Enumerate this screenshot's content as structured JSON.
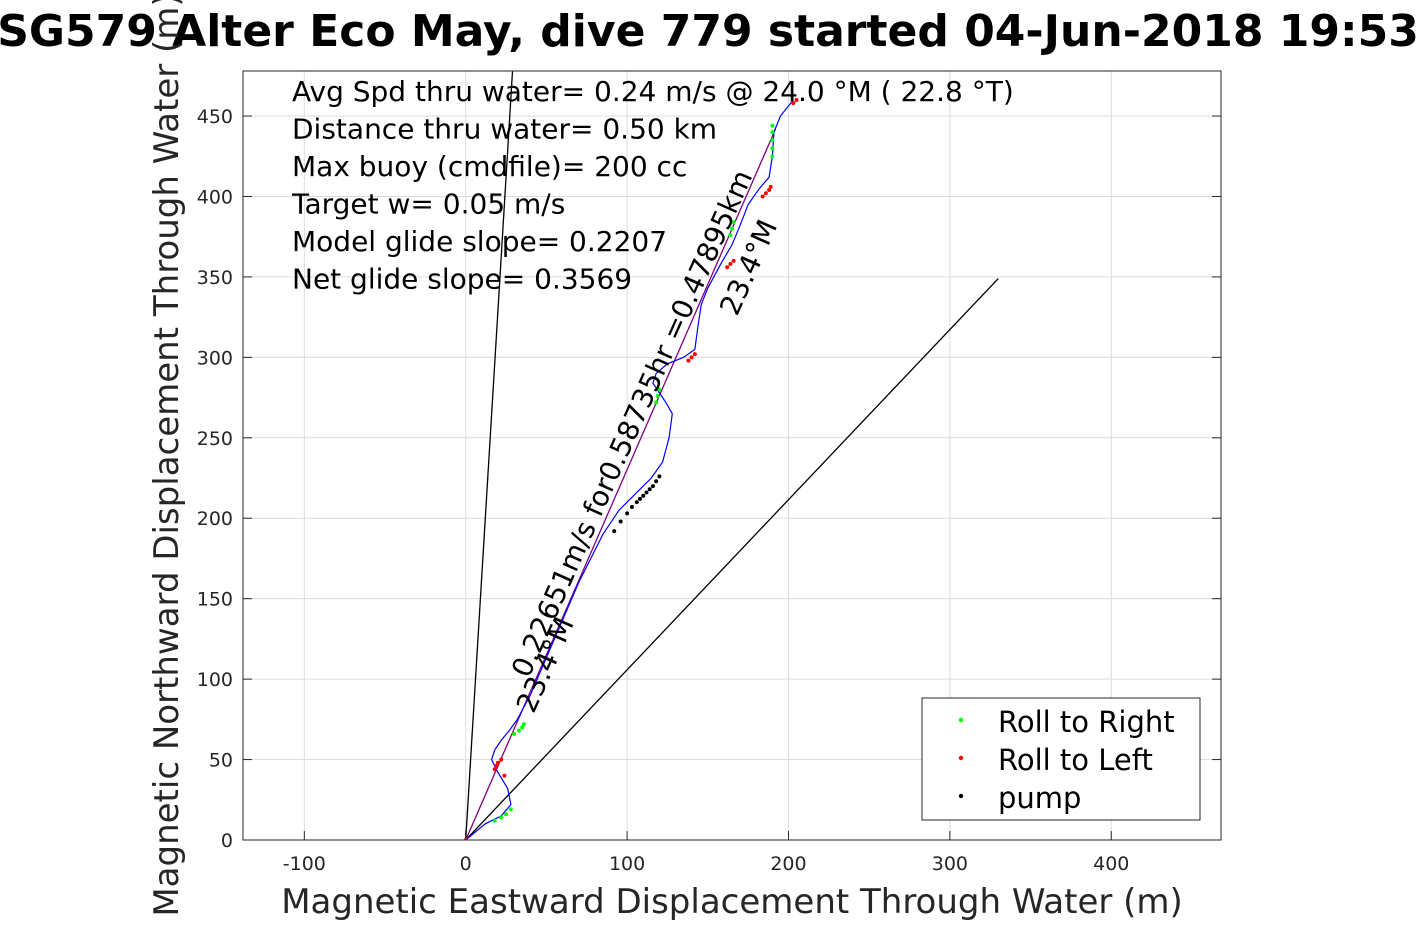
{
  "chart_data": {
    "type": "line",
    "title": "SG579 Alter Eco May, dive 779 started 04-Jun-2018 19:53",
    "xlabel": "Magnetic Eastward Displacement Through Water (m)",
    "ylabel": "Magnetic Northward Displacement Through Water (m)",
    "xlim": [
      -138,
      468
    ],
    "ylim": [
      0,
      478
    ],
    "xticks": [
      -100,
      0,
      100,
      200,
      300,
      400
    ],
    "yticks": [
      0,
      50,
      100,
      150,
      200,
      250,
      300,
      350,
      400,
      450
    ],
    "grid": true,
    "info_lines": [
      "Avg Spd thru water=  0.24 m/s @  24.0 °M ( 22.8 °T)",
      "Distance thru water=  0.50 km",
      "Max buoy (cmdfile)= 200 cc",
      "Target w= 0.05 m/s",
      "Model glide slope= 0.2207",
      "Net glide slope= 0.3569"
    ],
    "annotations": [
      {
        "text": "0.22651m/s for0.58735hr =0.47895km",
        "at": [
          39,
          100
        ],
        "angle_deg": -66
      },
      {
        "text": "23.4°M",
        "at": [
          42,
          78
        ],
        "angle_deg": -66
      },
      {
        "text": "23.4°M",
        "at": [
          168,
          325
        ],
        "angle_deg": -66
      }
    ],
    "reference_lines": [
      {
        "name": "left-bound",
        "x": [
          0,
          29
        ],
        "y": [
          0,
          478
        ]
      },
      {
        "name": "right-bound",
        "x": [
          0,
          330
        ],
        "y": [
          0,
          349
        ]
      },
      {
        "name": "heading-line",
        "x": [
          0,
          192
        ],
        "y": [
          0,
          442
        ]
      }
    ],
    "series": [
      {
        "name": "track",
        "color": "#0000ff",
        "x": [
          0,
          12,
          22,
          28,
          26,
          20,
          16,
          18,
          22,
          27,
          32,
          40,
          55,
          70,
          85,
          95,
          105,
          115,
          122,
          126,
          128,
          124,
          120,
          116,
          118,
          125,
          135,
          142,
          144,
          146,
          150,
          158,
          165,
          170,
          175,
          182,
          188,
          190,
          191,
          195,
          203
        ],
        "y": [
          0,
          10,
          15,
          22,
          32,
          42,
          50,
          56,
          62,
          68,
          75,
          90,
          125,
          160,
          190,
          205,
          215,
          225,
          235,
          250,
          265,
          272,
          278,
          284,
          290,
          296,
          300,
          305,
          320,
          333,
          343,
          358,
          370,
          382,
          395,
          405,
          412,
          425,
          440,
          450,
          460
        ]
      },
      {
        "name": "Roll to Right",
        "color": "#00ff00",
        "x": [
          18,
          22,
          25,
          28,
          30,
          33,
          35,
          36,
          118,
          119,
          120,
          164,
          165,
          166,
          190,
          190,
          190,
          190,
          190
        ],
        "y": [
          12,
          14,
          16,
          19,
          66,
          68,
          70,
          72,
          272,
          276,
          280,
          376,
          380,
          384,
          425,
          430,
          435,
          440,
          444
        ]
      },
      {
        "name": "Roll to Left",
        "color": "#ff0000",
        "x": [
          0,
          18,
          19,
          20,
          22,
          24,
          138,
          140,
          142,
          162,
          164,
          166,
          184,
          186,
          188,
          189,
          203,
          205
        ],
        "y": [
          0,
          44,
          46,
          48,
          50,
          40,
          298,
          300,
          302,
          356,
          358,
          360,
          400,
          402,
          404,
          406,
          458,
          460
        ]
      },
      {
        "name": "pump",
        "color": "#000000",
        "x": [
          92,
          96,
          100,
          103,
          106,
          108,
          110,
          112,
          114,
          116,
          118,
          120
        ],
        "y": [
          192,
          198,
          203,
          207,
          210,
          212,
          214,
          216,
          218,
          220,
          223,
          226
        ]
      }
    ],
    "legend": {
      "placement": "bottom-right",
      "entries": [
        {
          "label": "Roll to Right",
          "color": "#00ff00"
        },
        {
          "label": "Roll to Left",
          "color": "#ff0000"
        },
        {
          "label": "pump",
          "color": "#000000"
        }
      ]
    }
  }
}
